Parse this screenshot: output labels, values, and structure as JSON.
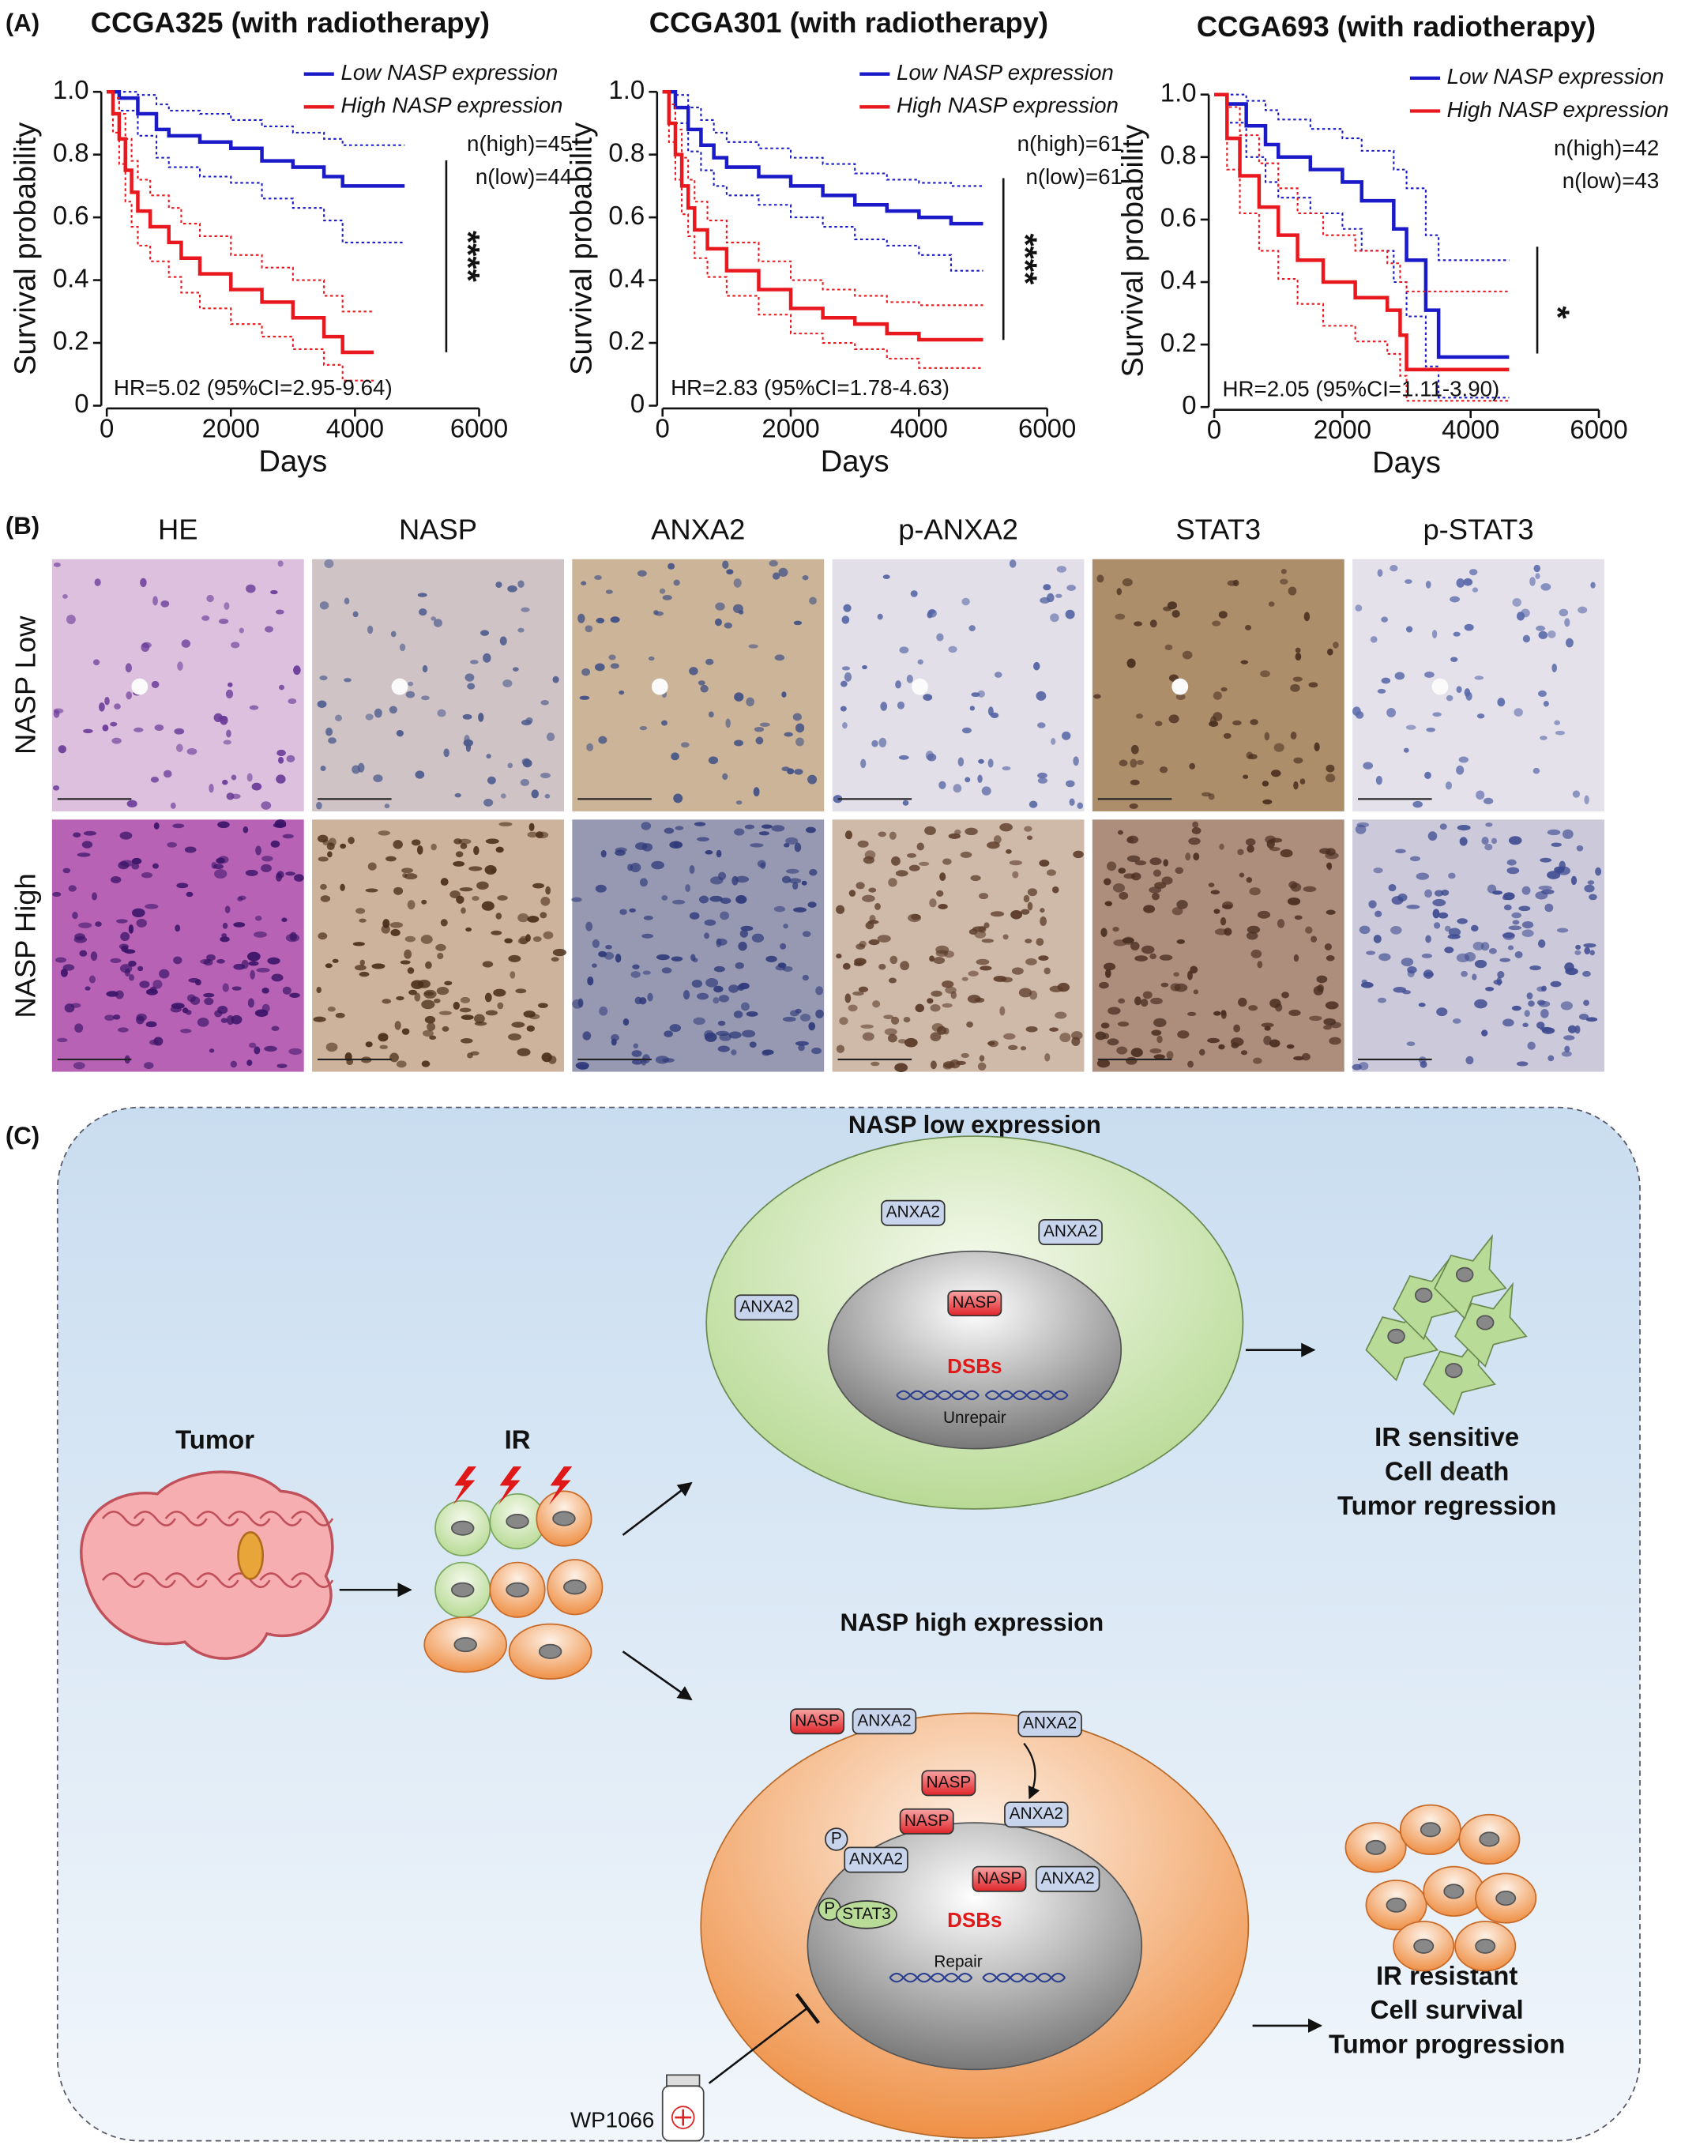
{
  "panels": {
    "a": "(A)",
    "b": "(B)",
    "c": "(C)"
  },
  "chart_data": [
    {
      "type": "line",
      "title": "CCGA325 (with radiotherapy)",
      "xlabel": "Days",
      "ylabel": "Survival probability",
      "xlim": [
        0,
        6000
      ],
      "xticks": [
        0,
        2000,
        4000,
        6000
      ],
      "ylim": [
        0,
        1
      ],
      "yticks": [
        0,
        0.2,
        0.4,
        0.6,
        0.8,
        {
          "value": 1,
          "label": "1.0"
        }
      ],
      "annotations": {
        "n_high": "n(high)=45",
        "n_low": "n(low)=44",
        "hr": "HR=5.02 (95%CI=2.95-9.64)",
        "significance": "****"
      },
      "series": [
        {
          "name": "Low NASP expression",
          "color": "#1a1ac8",
          "x": [
            0,
            200,
            500,
            800,
            1000,
            1500,
            2000,
            2500,
            3000,
            3500,
            3800,
            4800
          ],
          "values": [
            1,
            0.98,
            0.93,
            0.88,
            0.86,
            0.84,
            0.82,
            0.78,
            0.76,
            0.73,
            0.7,
            0.7
          ],
          "upper": [
            1,
            1,
            0.99,
            0.96,
            0.94,
            0.93,
            0.91,
            0.89,
            0.87,
            0.85,
            0.83,
            0.83
          ],
          "lower": [
            1,
            0.94,
            0.86,
            0.79,
            0.76,
            0.73,
            0.71,
            0.66,
            0.63,
            0.59,
            0.52,
            0.52
          ]
        },
        {
          "name": "High NASP expression",
          "color": "#e8181e",
          "x": [
            0,
            100,
            200,
            300,
            400,
            500,
            700,
            1000,
            1200,
            1500,
            2000,
            2500,
            3000,
            3500,
            3800,
            4300
          ],
          "values": [
            1,
            0.93,
            0.85,
            0.75,
            0.68,
            0.62,
            0.57,
            0.52,
            0.47,
            0.42,
            0.37,
            0.33,
            0.28,
            0.22,
            0.17,
            0.17
          ],
          "upper": [
            1,
            0.98,
            0.93,
            0.85,
            0.78,
            0.72,
            0.67,
            0.63,
            0.58,
            0.54,
            0.48,
            0.44,
            0.4,
            0.35,
            0.3,
            0.3
          ],
          "lower": [
            1,
            0.87,
            0.77,
            0.65,
            0.57,
            0.51,
            0.46,
            0.41,
            0.36,
            0.31,
            0.26,
            0.22,
            0.18,
            0.13,
            0.08,
            0.08
          ]
        }
      ]
    },
    {
      "type": "line",
      "title": "CCGA301 (with radiotherapy)",
      "xlabel": "Days",
      "ylabel": "Survival probability",
      "xlim": [
        0,
        6000
      ],
      "xticks": [
        0,
        2000,
        4000,
        6000
      ],
      "ylim": [
        0,
        1
      ],
      "yticks": [
        0,
        0.2,
        0.4,
        0.6,
        0.8,
        {
          "value": 1,
          "label": "1.0"
        }
      ],
      "annotations": {
        "n_high": "n(high)=61",
        "n_low": "n(low)=61",
        "hr": "HR=2.83 (95%CI=1.78-4.63)",
        "significance": "****"
      },
      "series": [
        {
          "name": "Low NASP expression",
          "color": "#1a1ac8",
          "x": [
            0,
            200,
            400,
            600,
            800,
            1000,
            1500,
            2000,
            2500,
            3000,
            3500,
            4000,
            4500,
            5000
          ],
          "values": [
            1,
            0.95,
            0.88,
            0.83,
            0.79,
            0.76,
            0.73,
            0.7,
            0.67,
            0.64,
            0.62,
            0.6,
            0.58,
            0.58
          ],
          "upper": [
            1,
            0.99,
            0.95,
            0.91,
            0.87,
            0.84,
            0.82,
            0.79,
            0.77,
            0.74,
            0.72,
            0.71,
            0.7,
            0.7
          ],
          "lower": [
            1,
            0.9,
            0.81,
            0.75,
            0.7,
            0.67,
            0.64,
            0.6,
            0.57,
            0.53,
            0.51,
            0.48,
            0.43,
            0.43
          ]
        },
        {
          "name": "High NASP expression",
          "color": "#e8181e",
          "x": [
            0,
            100,
            200,
            300,
            400,
            500,
            700,
            1000,
            1500,
            2000,
            2500,
            3000,
            3500,
            4000,
            5000
          ],
          "values": [
            1,
            0.9,
            0.8,
            0.7,
            0.63,
            0.56,
            0.5,
            0.43,
            0.37,
            0.31,
            0.28,
            0.26,
            0.23,
            0.21,
            0.21
          ],
          "upper": [
            1,
            0.96,
            0.88,
            0.79,
            0.72,
            0.65,
            0.59,
            0.52,
            0.46,
            0.4,
            0.37,
            0.35,
            0.33,
            0.32,
            0.32
          ],
          "lower": [
            1,
            0.84,
            0.72,
            0.61,
            0.54,
            0.47,
            0.41,
            0.35,
            0.29,
            0.23,
            0.2,
            0.18,
            0.15,
            0.12,
            0.12
          ]
        }
      ]
    },
    {
      "type": "line",
      "title": "CCGA693 (with radiotherapy)",
      "xlabel": "Days",
      "ylabel": "Survival probability",
      "xlim": [
        0,
        6000
      ],
      "xticks": [
        0,
        2000,
        4000,
        6000
      ],
      "ylim": [
        0,
        1
      ],
      "yticks": [
        0,
        0.2,
        0.4,
        0.6,
        0.8,
        {
          "value": 1,
          "label": "1.0"
        }
      ],
      "annotations": {
        "n_high": "n(high)=42",
        "n_low": "n(low)=43",
        "hr": "HR=2.05 (95%CI=1.11-3.90)",
        "significance": "*"
      },
      "series": [
        {
          "name": "Low NASP expression",
          "color": "#1a1ac8",
          "x": [
            0,
            200,
            500,
            800,
            1000,
            1500,
            2000,
            2300,
            2800,
            3000,
            3300,
            3500,
            4600
          ],
          "values": [
            1,
            0.97,
            0.9,
            0.84,
            0.8,
            0.76,
            0.72,
            0.66,
            0.57,
            0.47,
            0.31,
            0.16,
            0.16
          ],
          "upper": [
            1,
            1,
            0.98,
            0.95,
            0.92,
            0.89,
            0.86,
            0.82,
            0.76,
            0.7,
            0.55,
            0.47,
            0.47
          ],
          "lower": [
            1,
            0.91,
            0.8,
            0.72,
            0.67,
            0.62,
            0.57,
            0.5,
            0.4,
            0.29,
            0.13,
            0.03,
            0.03
          ]
        },
        {
          "name": "High NASP expression",
          "color": "#e8181e",
          "x": [
            0,
            200,
            400,
            700,
            1000,
            1300,
            1700,
            2200,
            2700,
            2900,
            3000,
            4600
          ],
          "values": [
            1,
            0.86,
            0.74,
            0.64,
            0.55,
            0.47,
            0.4,
            0.35,
            0.31,
            0.23,
            0.12,
            0.12
          ],
          "upper": [
            1,
            0.96,
            0.87,
            0.78,
            0.7,
            0.62,
            0.55,
            0.5,
            0.46,
            0.4,
            0.37,
            0.37
          ],
          "lower": [
            1,
            0.76,
            0.62,
            0.5,
            0.41,
            0.33,
            0.26,
            0.21,
            0.17,
            0.1,
            0.02,
            0.02
          ]
        }
      ]
    }
  ],
  "ihc": {
    "columns": [
      "HE",
      "NASP",
      "ANXA2",
      "p-ANXA2",
      "STAT3",
      "p-STAT3"
    ],
    "rows": [
      "NASP Low",
      "NASP High"
    ]
  },
  "diagram": {
    "tumor": "Tumor",
    "ir": "IR",
    "drug": "WP1066",
    "low": {
      "title": "NASP low expression",
      "labels": [
        "ANXA2",
        "ANXA2",
        "ANXA2",
        "NASP"
      ],
      "dsbs": "DSBs",
      "state": "Unrepair",
      "outcome": [
        "IR sensitive",
        "Cell death",
        "Tumor regression"
      ]
    },
    "high": {
      "title": "NASP high expression",
      "labels": [
        "NASP",
        "ANXA2",
        "ANXA2",
        "NASP",
        "ANXA2",
        "NASP",
        "P",
        "ANXA2",
        "NASP",
        "ANXA2",
        "P",
        "STAT3"
      ],
      "dsbs": "DSBs",
      "state": "Repair",
      "outcome": [
        "IR resistant",
        "Cell survival",
        "Tumor progression"
      ]
    }
  }
}
